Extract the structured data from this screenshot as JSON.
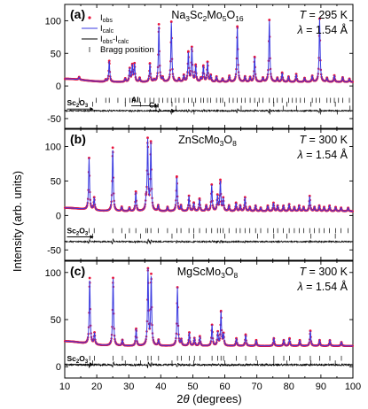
{
  "chart_data": {
    "type": "line",
    "xlabel_prefix": "2",
    "xlabel_theta": "θ",
    "xlabel_suffix": " (degrees)",
    "ylabel": "Intensity (arb. units)",
    "xlim": [
      10,
      100
    ],
    "xticks": [
      "10",
      "20",
      "30",
      "40",
      "50",
      "60",
      "70",
      "80",
      "90",
      "100"
    ],
    "legend": {
      "obs": {
        "main": "I",
        "sub": "obs"
      },
      "calc": {
        "main": "I",
        "sub": "calc"
      },
      "diff": {
        "main": "I",
        "sub1": "obs",
        "mid": "-I",
        "sub2": "calc"
      },
      "bragg": "Bragg position"
    },
    "colors": {
      "observed": "#e8143c",
      "calculated": "#3a3ae0",
      "difference": "#000000",
      "bragg": "#000000"
    },
    "panels": [
      {
        "letter": "(a)",
        "compound": {
          "p1": "Na",
          "s1": "3",
          "p2": "Sc",
          "s2": "2",
          "p3": "Mo",
          "s3": "5",
          "p4": "O",
          "s4": "16"
        },
        "temperature": {
          "sym": "T",
          "rest": " = 295 K"
        },
        "wavelength": {
          "sym": "λ",
          "rest": " = 1.54 Å"
        },
        "ylim": [
          -65,
          125
        ],
        "yticks": [
          {
            "v": 100,
            "t": "100"
          },
          {
            "v": 50,
            "t": "50"
          },
          {
            "v": 0,
            "t": "0"
          },
          {
            "v": -50,
            "t": "-50"
          }
        ],
        "baseline": 6,
        "diff_offset": -38,
        "peaks": [
          [
            14.5,
            4
          ],
          [
            22.8,
            3
          ],
          [
            23.9,
            32
          ],
          [
            28.9,
            5
          ],
          [
            30.3,
            20
          ],
          [
            31.1,
            25
          ],
          [
            31.8,
            27
          ],
          [
            33.4,
            6
          ],
          [
            36.6,
            28
          ],
          [
            37.9,
            3
          ],
          [
            39.4,
            88
          ],
          [
            40.6,
            6
          ],
          [
            43.3,
            92
          ],
          [
            45.7,
            5
          ],
          [
            47.2,
            10
          ],
          [
            48.6,
            45
          ],
          [
            49.7,
            52
          ],
          [
            50.9,
            25
          ],
          [
            52.5,
            5
          ],
          [
            53.3,
            24
          ],
          [
            54.6,
            30
          ],
          [
            55.6,
            10
          ],
          [
            57.4,
            8
          ],
          [
            59.3,
            5
          ],
          [
            61.4,
            9
          ],
          [
            63.9,
            85
          ],
          [
            66.3,
            8
          ],
          [
            67.9,
            7
          ],
          [
            69.3,
            38
          ],
          [
            71.9,
            6
          ],
          [
            73.9,
            95
          ],
          [
            76.4,
            6
          ],
          [
            77.9,
            14
          ],
          [
            79.9,
            8
          ],
          [
            82.3,
            12
          ],
          [
            84.9,
            6
          ],
          [
            87.3,
            9
          ],
          [
            89.6,
            97
          ],
          [
            91.9,
            6
          ],
          [
            94.2,
            10
          ],
          [
            96.8,
            7
          ],
          [
            98.9,
            5
          ]
        ],
        "bragg_rows": [
          {
            "y": -22,
            "positions": [
              14.5,
              19.8,
              22.8,
              23.9,
              26.6,
              28.9,
              30.3,
              31.1,
              31.8,
              33.4,
              35.1,
              36.6,
              37.9,
              39.4,
              40.6,
              42.1,
              43.3,
              44.6,
              45.7,
              47.2,
              48.6,
              49.7,
              50.9,
              52.5,
              53.3,
              54.6,
              55.6,
              57.4,
              58.6,
              59.3,
              61.4,
              62.6,
              63.9,
              65.2,
              66.3,
              67.9,
              69.3,
              70.7,
              71.9,
              73.9,
              75.2,
              76.4,
              77.9,
              79.9,
              81.1,
              82.3,
              83.6,
              84.9,
              87.3,
              88.5,
              89.6,
              91.9,
              93.0,
              94.2,
              95.5,
              96.8,
              98.9
            ]
          },
          {
            "y": -28,
            "positions": [
              18.7,
              28.9,
              33.7,
              43.5,
              50.3,
              60.0,
              70.2,
              75.3,
              79.4,
              86.9,
              94.5
            ]
          },
          {
            "y": -34,
            "positions": [
              38.5,
              44.7,
              65.1,
              78.2,
              82.4,
              99.1
            ]
          },
          {
            "y": -40,
            "positions": [
              43.3,
              50.4,
              74.1,
              89.9,
              95.1
            ]
          }
        ],
        "phase_labels": [
          {
            "base": "Sc",
            "sub1": "2",
            "mid": "O",
            "sub2": "3",
            "x": 10.7,
            "y": -30
          },
          {
            "base": "Al",
            "sub1": "",
            "mid": "",
            "sub2": "",
            "x": 30.8,
            "y": -25
          },
          {
            "base": "Cu",
            "sub1": "",
            "mid": "",
            "sub2": "",
            "x": 36.3,
            "y": -33
          }
        ]
      },
      {
        "letter": "(b)",
        "compound": {
          "p1": "ZnScMo",
          "s1": "3",
          "p2": "O",
          "s2": "8",
          "p3": "",
          "s3": "",
          "p4": "",
          "s4": ""
        },
        "temperature": {
          "sym": "T",
          "rest": " = 300 K"
        },
        "wavelength": {
          "sym": "λ",
          "rest": " = 1.54 Å"
        },
        "ylim": [
          -65,
          125
        ],
        "yticks": [
          {
            "v": 100,
            "t": "100"
          },
          {
            "v": 50,
            "t": "50"
          },
          {
            "v": 0,
            "t": "0"
          },
          {
            "v": -50,
            "t": "-50"
          }
        ],
        "baseline": 6,
        "diff_offset": -38,
        "peaks": [
          [
            17.6,
            75
          ],
          [
            19.2,
            18
          ],
          [
            25.0,
            92
          ],
          [
            27.8,
            6
          ],
          [
            30.2,
            5
          ],
          [
            32.2,
            28
          ],
          [
            35.4,
            12
          ],
          [
            35.9,
            102
          ],
          [
            36.9,
            98
          ],
          [
            39.2,
            8
          ],
          [
            42.1,
            6
          ],
          [
            45.0,
            50
          ],
          [
            46.3,
            8
          ],
          [
            48.8,
            22
          ],
          [
            50.3,
            12
          ],
          [
            52.1,
            18
          ],
          [
            54.2,
            8
          ],
          [
            55.9,
            38
          ],
          [
            57.7,
            22
          ],
          [
            58.6,
            44
          ],
          [
            59.5,
            18
          ],
          [
            61.3,
            8
          ],
          [
            63.5,
            12
          ],
          [
            64.8,
            8
          ],
          [
            66.3,
            20
          ],
          [
            67.8,
            6
          ],
          [
            69.6,
            8
          ],
          [
            71.2,
            5
          ],
          [
            73.4,
            8
          ],
          [
            75.2,
            12
          ],
          [
            76.5,
            8
          ],
          [
            78.3,
            8
          ],
          [
            80.1,
            10
          ],
          [
            81.7,
            6
          ],
          [
            83.2,
            8
          ],
          [
            84.6,
            6
          ],
          [
            86.5,
            22
          ],
          [
            88.0,
            6
          ],
          [
            89.5,
            8
          ],
          [
            91.0,
            6
          ],
          [
            92.7,
            8
          ],
          [
            94.6,
            6
          ],
          [
            96.3,
            5
          ],
          [
            98.5,
            5
          ]
        ],
        "bragg_rows": [
          {
            "y": -22,
            "positions": [
              17.6,
              19.2,
              25.0,
              27.8,
              30.2,
              32.2,
              35.4,
              35.9,
              36.9,
              39.2,
              42.1,
              45.0,
              46.3,
              48.8,
              50.3,
              52.1,
              54.2,
              55.9,
              57.7,
              58.6,
              59.5,
              61.3,
              63.5,
              64.8,
              66.3,
              67.8,
              69.6,
              71.2,
              73.4,
              75.2,
              76.5,
              78.3,
              80.1,
              81.7,
              83.2,
              84.6,
              86.5,
              88.0,
              89.5,
              91.0,
              92.7,
              94.6,
              96.3,
              98.5
            ]
          },
          {
            "y": -30,
            "positions": [
              18.7,
              28.9,
              33.7,
              43.5,
              50.3,
              60.0,
              70.2,
              75.3,
              79.4,
              86.9,
              94.5
            ]
          }
        ],
        "phase_labels": [
          {
            "base": "Sc",
            "sub1": "2",
            "mid": "O",
            "sub2": "3",
            "x": 10.7,
            "y": -26
          }
        ]
      },
      {
        "letter": "(c)",
        "compound": {
          "p1": "MgScMo",
          "s1": "3",
          "p2": "O",
          "s2": "8",
          "p3": "",
          "s3": "",
          "p4": "",
          "s4": ""
        },
        "temperature": {
          "sym": "T",
          "rest": " = 300 K"
        },
        "wavelength": {
          "sym": "λ",
          "rest": " = 1.54 Å"
        },
        "ylim": [
          -12,
          112
        ],
        "yticks": [
          {
            "v": 100,
            "t": "100"
          },
          {
            "v": 50,
            "t": "50"
          },
          {
            "v": 0,
            "t": "0"
          }
        ],
        "baseline": 22,
        "diff_offset": 2,
        "peaks": [
          [
            17.8,
            70
          ],
          [
            19.3,
            12
          ],
          [
            25.1,
            72
          ],
          [
            28.0,
            6
          ],
          [
            32.3,
            18
          ],
          [
            36.0,
            80
          ],
          [
            37.0,
            74
          ],
          [
            39.3,
            6
          ],
          [
            45.2,
            62
          ],
          [
            46.4,
            6
          ],
          [
            48.9,
            14
          ],
          [
            50.5,
            8
          ],
          [
            52.2,
            10
          ],
          [
            56.0,
            22
          ],
          [
            57.8,
            14
          ],
          [
            58.8,
            36
          ],
          [
            59.6,
            12
          ],
          [
            63.6,
            8
          ],
          [
            66.5,
            12
          ],
          [
            69.8,
            6
          ],
          [
            75.3,
            8
          ],
          [
            78.4,
            6
          ],
          [
            80.2,
            8
          ],
          [
            83.4,
            6
          ],
          [
            86.7,
            16
          ],
          [
            89.6,
            6
          ],
          [
            92.8,
            6
          ],
          [
            96.4,
            4
          ]
        ],
        "bragg_rows": [
          {
            "y": 9,
            "positions": [
              17.8,
              19.3,
              25.1,
              28.0,
              32.3,
              36.0,
              37.0,
              39.3,
              45.2,
              46.4,
              48.9,
              50.5,
              52.2,
              56.0,
              57.8,
              58.8,
              59.6,
              63.6,
              66.5,
              69.8,
              75.3,
              78.4,
              80.2,
              83.4,
              86.7,
              89.6,
              92.8,
              96.4
            ]
          },
          {
            "y": 4,
            "positions": [
              18.7,
              28.9,
              33.7,
              43.5,
              50.3,
              60.0,
              70.2,
              75.3,
              79.4,
              86.9,
              94.5
            ]
          }
        ],
        "phase_labels": [
          {
            "base": "Sc",
            "sub1": "2",
            "mid": "O",
            "sub2": "3",
            "x": 10.7,
            "y": 6
          }
        ]
      }
    ]
  }
}
